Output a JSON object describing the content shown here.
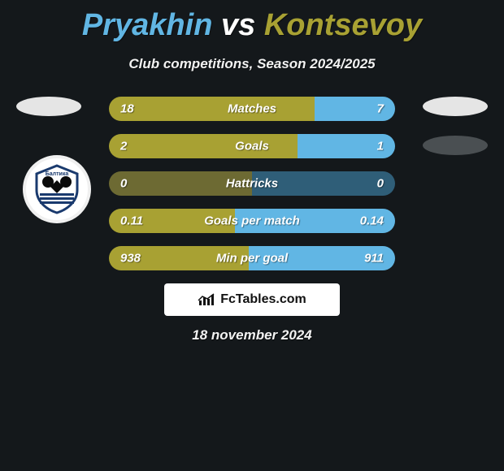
{
  "title": {
    "player1": "Pryakhin",
    "vs": "vs",
    "player2": "Kontsevoy",
    "color1": "#61b6e4",
    "color_vs": "#ffffff",
    "color2": "#a8a133"
  },
  "subtitle": "Club competitions, Season 2024/2025",
  "footer_brand": "FcTables.com",
  "date": "18 november 2024",
  "colors": {
    "left": "#a8a133",
    "right": "#61b6e4",
    "neutral_left": "#6d6a33",
    "neutral_right": "#2f5e78",
    "background": "#14181b"
  },
  "bars": [
    {
      "label": "Matches",
      "left_val": "18",
      "right_val": "7",
      "left_pct": 72,
      "right_pct": 28,
      "left_color": "#a8a133",
      "right_color": "#61b6e4"
    },
    {
      "label": "Goals",
      "left_val": "2",
      "right_val": "1",
      "left_pct": 66,
      "right_pct": 34,
      "left_color": "#a8a133",
      "right_color": "#61b6e4"
    },
    {
      "label": "Hattricks",
      "left_val": "0",
      "right_val": "0",
      "left_pct": 50,
      "right_pct": 50,
      "left_color": "#6d6a33",
      "right_color": "#2f5e78"
    },
    {
      "label": "Goals per match",
      "left_val": "0.11",
      "right_val": "0.14",
      "left_pct": 44,
      "right_pct": 56,
      "left_color": "#a8a133",
      "right_color": "#61b6e4"
    },
    {
      "label": "Min per goal",
      "left_val": "938",
      "right_val": "911",
      "left_pct": 49,
      "right_pct": 51,
      "left_color": "#a8a133",
      "right_color": "#61b6e4"
    }
  ],
  "badge_text": "Балтика"
}
